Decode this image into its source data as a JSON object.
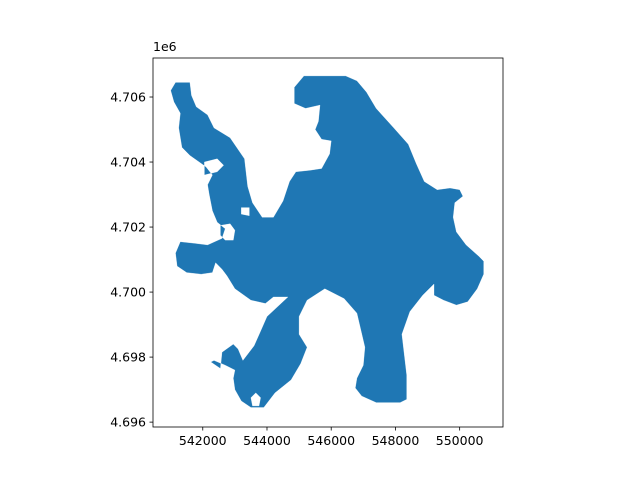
{
  "chart_data": {
    "type": "map",
    "title": "",
    "xlabel": "",
    "ylabel": "",
    "grid": false,
    "xlim": [
      540450,
      551350
    ],
    "ylim": [
      4695850,
      4707200
    ],
    "x_ticks": [
      542000,
      544000,
      546000,
      548000,
      550000
    ],
    "x_tick_labels": [
      "542000",
      "544000",
      "546000",
      "548000",
      "550000"
    ],
    "y_ticks": [
      4696000,
      4698000,
      4700000,
      4702000,
      4704000,
      4706000
    ],
    "y_tick_labels": [
      "4.696",
      "4.698",
      "4.700",
      "4.702",
      "4.704",
      "4.706"
    ],
    "y_offset_label": "1e6",
    "fill_color": "#1f77b4",
    "edge_color": "#ffffff",
    "shape": {
      "outer": [
        [
          541000,
          4706200
        ],
        [
          541150,
          4706450
        ],
        [
          541600,
          4706450
        ],
        [
          541650,
          4706050
        ],
        [
          541800,
          4705700
        ],
        [
          542150,
          4705450
        ],
        [
          542350,
          4705050
        ],
        [
          542850,
          4704750
        ],
        [
          543300,
          4704100
        ],
        [
          543400,
          4703250
        ],
        [
          543550,
          4702750
        ],
        [
          543850,
          4702300
        ],
        [
          544200,
          4702300
        ],
        [
          544500,
          4702800
        ],
        [
          544700,
          4703400
        ],
        [
          544900,
          4703700
        ],
        [
          545350,
          4703750
        ],
        [
          545700,
          4703800
        ],
        [
          545950,
          4704250
        ],
        [
          546000,
          4704650
        ],
        [
          545700,
          4704700
        ],
        [
          545500,
          4705000
        ],
        [
          545600,
          4705250
        ],
        [
          545650,
          4705750
        ],
        [
          545200,
          4705650
        ],
        [
          544850,
          4705800
        ],
        [
          544850,
          4706300
        ],
        [
          545150,
          4706650
        ],
        [
          546450,
          4706650
        ],
        [
          546800,
          4706500
        ],
        [
          547100,
          4706150
        ],
        [
          547400,
          4705650
        ],
        [
          547950,
          4705050
        ],
        [
          548400,
          4704550
        ],
        [
          548650,
          4703950
        ],
        [
          548900,
          4703400
        ],
        [
          549300,
          4703150
        ],
        [
          549700,
          4703200
        ],
        [
          550000,
          4703150
        ],
        [
          550100,
          4702950
        ],
        [
          549850,
          4702750
        ],
        [
          549800,
          4702300
        ],
        [
          549900,
          4701850
        ],
        [
          550200,
          4701450
        ],
        [
          550600,
          4701100
        ],
        [
          550750,
          4700950
        ],
        [
          550750,
          4700550
        ],
        [
          550550,
          4700100
        ],
        [
          550250,
          4699700
        ],
        [
          549900,
          4699600
        ],
        [
          549500,
          4699750
        ],
        [
          549200,
          4699900
        ],
        [
          549200,
          4700250
        ],
        [
          548850,
          4699900
        ],
        [
          548450,
          4699400
        ],
        [
          548200,
          4698700
        ],
        [
          548350,
          4697450
        ],
        [
          548350,
          4696700
        ],
        [
          548150,
          4696600
        ],
        [
          547400,
          4696600
        ],
        [
          546950,
          4696800
        ],
        [
          546750,
          4697050
        ],
        [
          546800,
          4697350
        ],
        [
          547000,
          4697750
        ],
        [
          547050,
          4698300
        ],
        [
          546800,
          4699350
        ],
        [
          546400,
          4699800
        ],
        [
          545800,
          4700100
        ],
        [
          545250,
          4699750
        ],
        [
          545000,
          4699250
        ],
        [
          545000,
          4698700
        ],
        [
          545250,
          4698300
        ],
        [
          545050,
          4697800
        ],
        [
          544750,
          4697300
        ],
        [
          544250,
          4696900
        ],
        [
          543900,
          4696450
        ],
        [
          543500,
          4696450
        ],
        [
          543200,
          4696650
        ],
        [
          543000,
          4697000
        ],
        [
          542950,
          4697350
        ],
        [
          543000,
          4697600
        ],
        [
          542700,
          4697750
        ],
        [
          542350,
          4697900
        ],
        [
          542250,
          4697850
        ],
        [
          542550,
          4697650
        ],
        [
          542600,
          4698150
        ],
        [
          542950,
          4698400
        ],
        [
          543100,
          4698250
        ],
        [
          543250,
          4697900
        ],
        [
          543600,
          4698350
        ],
        [
          543800,
          4698800
        ],
        [
          544000,
          4699250
        ],
        [
          544650,
          4699850
        ],
        [
          544200,
          4699850
        ],
        [
          543950,
          4699650
        ],
        [
          543500,
          4699750
        ],
        [
          543000,
          4700100
        ],
        [
          542750,
          4700500
        ],
        [
          542600,
          4700700
        ],
        [
          542400,
          4700900
        ],
        [
          542300,
          4700600
        ],
        [
          541950,
          4700550
        ],
        [
          541500,
          4700600
        ],
        [
          541200,
          4700800
        ],
        [
          541150,
          4701200
        ],
        [
          541300,
          4701550
        ],
        [
          541750,
          4701500
        ],
        [
          542150,
          4701450
        ],
        [
          542600,
          4701650
        ],
        [
          542700,
          4701950
        ],
        [
          542450,
          4702150
        ],
        [
          542300,
          4702500
        ],
        [
          542200,
          4703000
        ],
        [
          542150,
          4703300
        ],
        [
          542300,
          4703600
        ],
        [
          542100,
          4703850
        ],
        [
          541600,
          4704200
        ],
        [
          541350,
          4704450
        ],
        [
          541250,
          4705050
        ],
        [
          541300,
          4705500
        ],
        [
          541100,
          4705850
        ]
      ],
      "holes": [
        [
          [
            542700,
            4701600
          ],
          [
            542950,
            4701600
          ],
          [
            543000,
            4701900
          ],
          [
            542850,
            4702100
          ],
          [
            542550,
            4702050
          ],
          [
            542550,
            4701750
          ]
        ],
        [
          [
            542050,
            4703600
          ],
          [
            542450,
            4703700
          ],
          [
            542650,
            4703900
          ],
          [
            542450,
            4704100
          ],
          [
            542050,
            4704000
          ]
        ],
        [
          [
            543200,
            4702400
          ],
          [
            543450,
            4702350
          ],
          [
            543450,
            4702600
          ],
          [
            543200,
            4702600
          ]
        ],
        [
          [
            543750,
            4696500
          ],
          [
            543800,
            4696750
          ],
          [
            543650,
            4696900
          ],
          [
            543500,
            4696750
          ],
          [
            543550,
            4696500
          ]
        ]
      ]
    }
  }
}
